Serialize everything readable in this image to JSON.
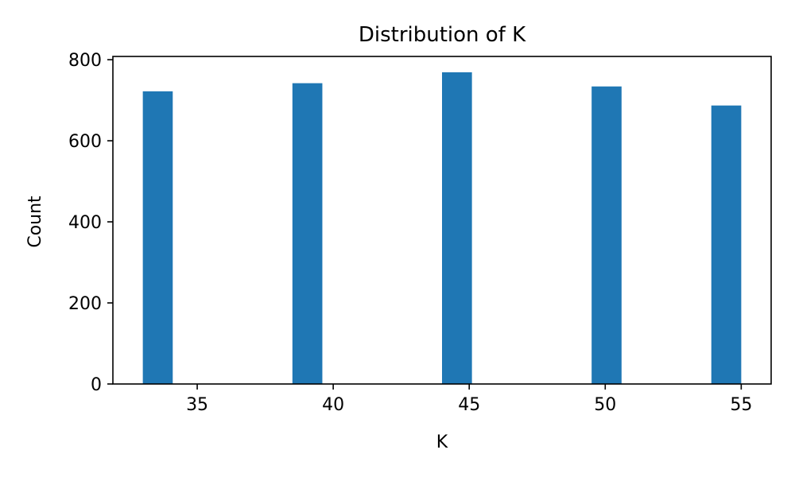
{
  "chart_data": {
    "type": "bar",
    "title": "Distribution of K",
    "xlabel": "K",
    "ylabel": "Count",
    "bar_color": "#1f77b4",
    "bin_width": 1.1,
    "bins": [
      {
        "x_start": 33,
        "x_end": 34.1,
        "count": 722
      },
      {
        "x_start": 38.5,
        "x_end": 39.6,
        "count": 742
      },
      {
        "x_start": 44,
        "x_end": 45.1,
        "count": 769
      },
      {
        "x_start": 49.5,
        "x_end": 50.6,
        "count": 734
      },
      {
        "x_start": 53.9,
        "x_end": 55,
        "count": 687
      }
    ],
    "xlim": [
      31.9,
      56.1
    ],
    "ylim": [
      0,
      808
    ],
    "xticks": [
      35,
      40,
      45,
      50,
      55
    ],
    "yticks": [
      0,
      200,
      400,
      600,
      800
    ],
    "grid": false,
    "legend": false
  }
}
